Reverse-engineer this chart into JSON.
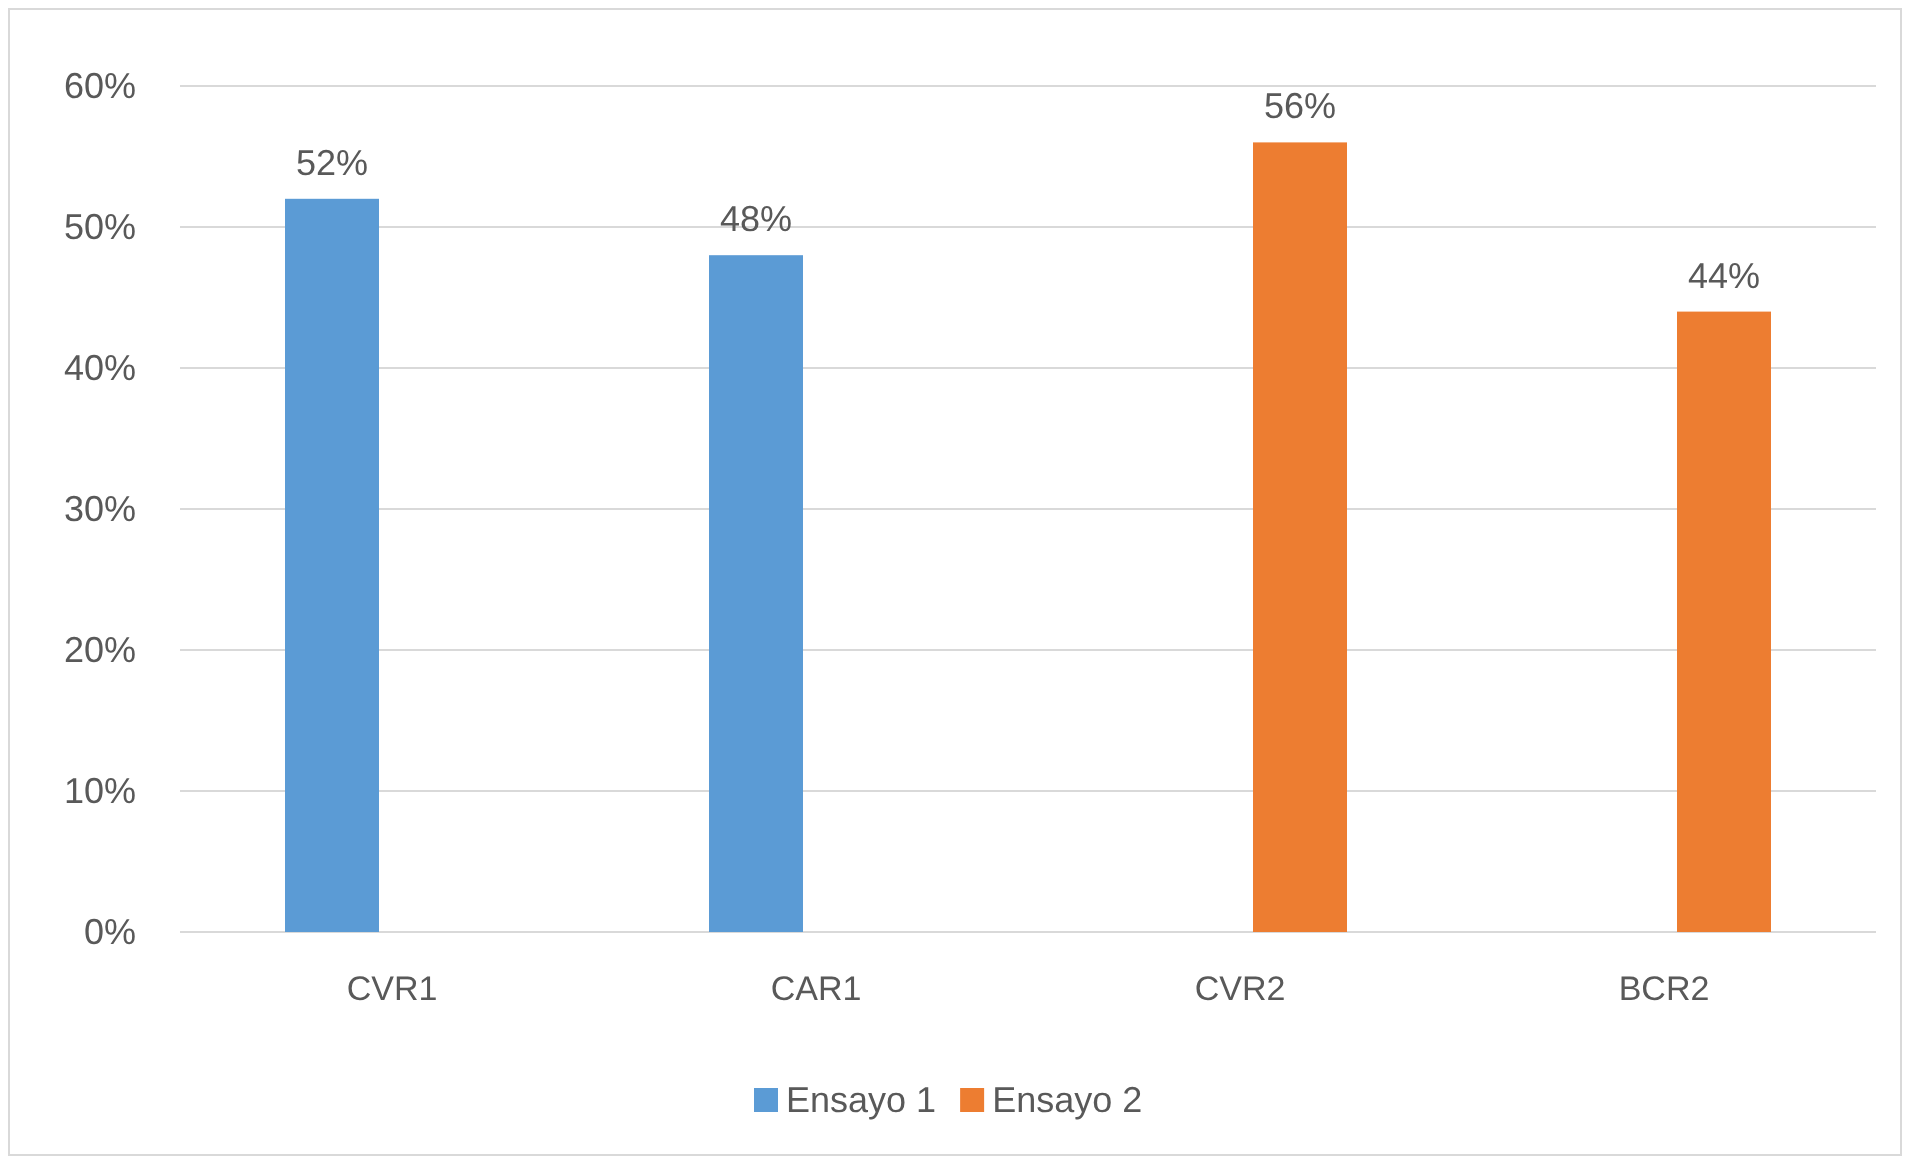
{
  "chart_data": {
    "type": "bar",
    "categories": [
      "CVR1",
      "CAR1",
      "CVR2",
      "BCR2"
    ],
    "series": [
      {
        "name": "Ensayo 1",
        "color": "#5b9bd5",
        "values": [
          52,
          48,
          null,
          null
        ],
        "value_labels": [
          "52%",
          "48%",
          null,
          null
        ]
      },
      {
        "name": "Ensayo 2",
        "color": "#ed7d31",
        "values": [
          null,
          null,
          56,
          44
        ],
        "value_labels": [
          null,
          null,
          "56%",
          "44%"
        ]
      }
    ],
    "ylim": [
      0,
      60
    ],
    "yticks": [
      {
        "value": 0,
        "label": "0%"
      },
      {
        "value": 10,
        "label": "10%"
      },
      {
        "value": 20,
        "label": "20%"
      },
      {
        "value": 30,
        "label": "30%"
      },
      {
        "value": 40,
        "label": "40%"
      },
      {
        "value": 50,
        "label": "50%"
      },
      {
        "value": 60,
        "label": "60%"
      }
    ],
    "grid": "y",
    "legend": "bottom"
  }
}
